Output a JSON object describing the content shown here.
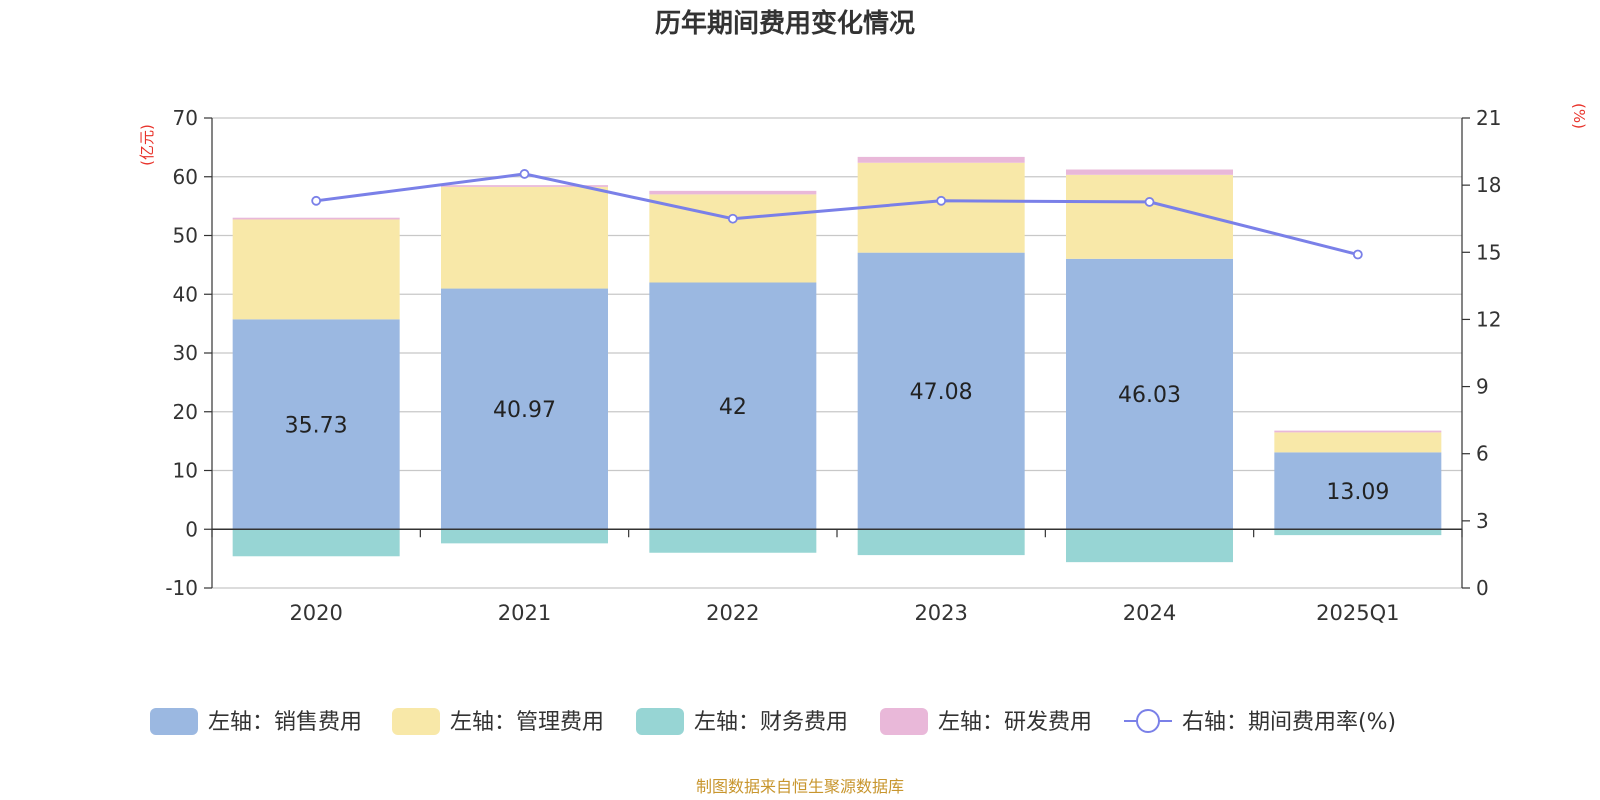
{
  "chart_data": {
    "type": "bar",
    "stacked": true,
    "title": "历年期间费用变化情况",
    "categories": [
      "2020",
      "2021",
      "2022",
      "2023",
      "2024",
      "2025Q1"
    ],
    "y_left": {
      "unit": "(亿元)",
      "min": -10,
      "max": 70,
      "ticks": [
        -10,
        0,
        10,
        20,
        30,
        40,
        50,
        60,
        70
      ]
    },
    "y_right": {
      "unit": "(%)",
      "min": 0,
      "max": 21,
      "ticks": [
        0,
        3,
        6,
        9,
        12,
        15,
        18,
        21
      ]
    },
    "series": [
      {
        "name": "左轴：销售费用",
        "type": "bar",
        "axis": "left",
        "color": "#9bb8e1",
        "values": [
          35.73,
          40.97,
          42,
          47.08,
          46.03,
          13.09
        ],
        "labels": [
          "35.73",
          "40.97",
          "42",
          "47.08",
          "46.03",
          "13.09"
        ]
      },
      {
        "name": "左轴：管理费用",
        "type": "bar",
        "axis": "left",
        "color": "#f8e8a8",
        "values": [
          17.0,
          17.3,
          15.0,
          15.3,
          14.3,
          3.4
        ]
      },
      {
        "name": "左轴：财务费用",
        "type": "bar",
        "axis": "left",
        "color": "#97d5d4",
        "values": [
          -4.6,
          -2.4,
          -4.0,
          -4.4,
          -5.6,
          -1.0
        ]
      },
      {
        "name": "左轴：研发费用",
        "type": "bar",
        "axis": "left",
        "color": "#e9b8d9",
        "values": [
          0.3,
          0.3,
          0.6,
          1.0,
          0.9,
          0.3
        ]
      },
      {
        "name": "右轴：期间费用率(%)",
        "type": "line",
        "axis": "right",
        "color": "#7a80e8",
        "values": [
          17.3,
          18.5,
          16.5,
          17.3,
          17.25,
          14.9
        ]
      }
    ],
    "grid": true,
    "legend": "bottom"
  },
  "source": "制图数据来自恒生聚源数据库"
}
